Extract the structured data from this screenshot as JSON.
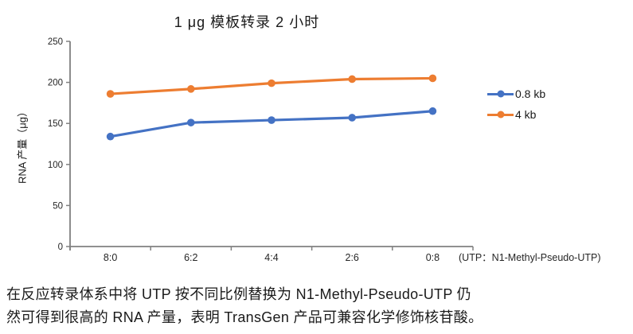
{
  "title": "1 μg 模板转录 2 小时",
  "chart_data": {
    "type": "line",
    "title": "1 μg 模板转录 2 小时",
    "categories": [
      "8:0",
      "6:2",
      "4:4",
      "2:6",
      "0:8"
    ],
    "series": [
      {
        "name": "0.8 kb",
        "color": "#4472C4",
        "values": [
          134,
          151,
          154,
          157,
          165
        ]
      },
      {
        "name": "4 kb",
        "color": "#ED7D31",
        "values": [
          186,
          192,
          199,
          204,
          205
        ]
      }
    ],
    "xlabel": "(UTP：N1-Methyl-Pseudo-UTP)",
    "ylabel": "RNA 产量（μg）",
    "ylim": [
      0,
      250
    ],
    "ytick_step": 50,
    "grid": false,
    "legend_position": "right",
    "axis_color": "#808080",
    "tick_label_color": "#262626"
  },
  "caption": {
    "line1": "在反应转录体系中将 UTP 按不同比例替换为 N1-Methyl-Pseudo-UTP 仍",
    "line2": "然可得到很高的 RNA 产量，表明 TransGen 产品可兼容化学修饰核苷酸。"
  }
}
